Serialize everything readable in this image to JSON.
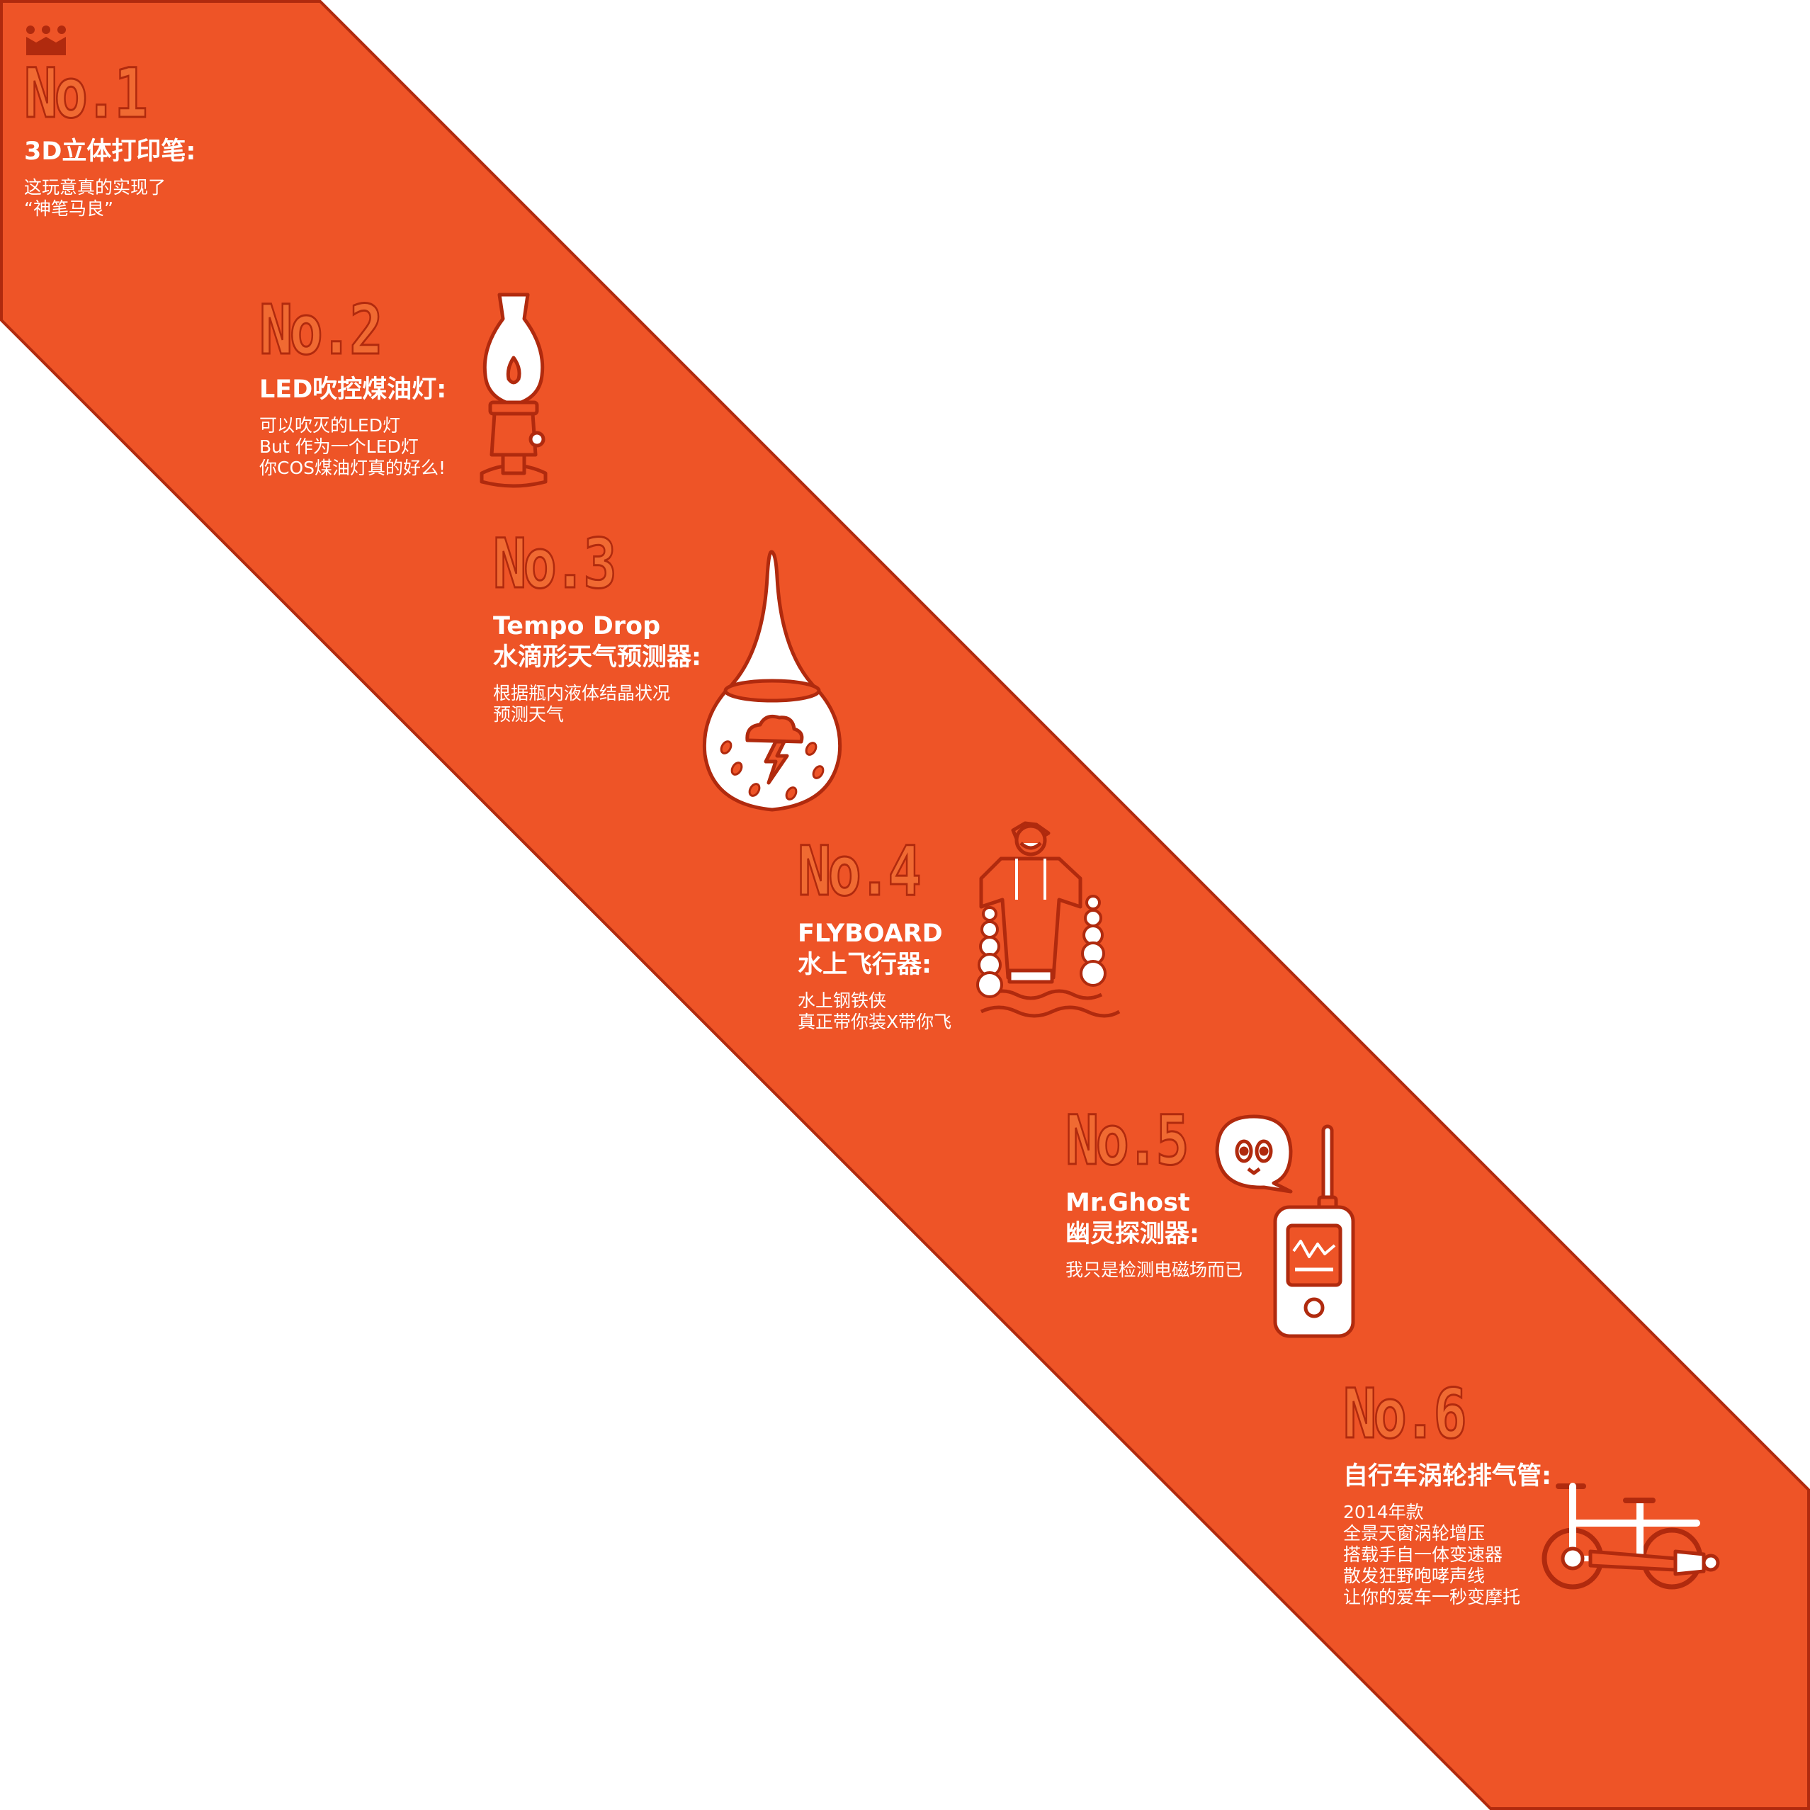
{
  "colors": {
    "band": "#ee5427",
    "band_stroke": "#b02a0e",
    "outline": "#b02a0e",
    "text": "#ffffff",
    "rank_fill": "#f06a32"
  },
  "items": [
    {
      "rank": "No.1",
      "title": "3D立体打印笔:",
      "desc": [
        "这玩意真的实现了",
        "“神笔马良”"
      ],
      "icon": "crown-icon"
    },
    {
      "rank": "No.2",
      "title": "LED吹控煤油灯:",
      "desc": [
        "可以吹灭的LED灯",
        "But 作为一个LED灯",
        "你COS煤油灯真的好么!"
      ],
      "icon": "oil-lamp-icon"
    },
    {
      "rank": "No.3",
      "title_en": "Tempo Drop",
      "title": "水滴形天气预测器:",
      "desc": [
        "根据瓶内液体结晶状况",
        "预测天气"
      ],
      "icon": "water-drop-weather-icon"
    },
    {
      "rank": "No.4",
      "title_en": "FLYBOARD",
      "title": "水上飞行器:",
      "desc": [
        "水上钢铁侠",
        "真正带你装X带你飞"
      ],
      "icon": "flyboard-man-icon"
    },
    {
      "rank": "No.5",
      "title_en": "Mr.Ghost",
      "title": "幽灵探测器:",
      "desc": [
        "我只是检测电磁场而已"
      ],
      "icon": "ghost-detector-icon"
    },
    {
      "rank": "No.6",
      "title": "自行车涡轮排气管:",
      "desc": [
        "2014年款",
        "全景天窗涡轮增压",
        "搭载手自一体变速器",
        "散发狂野咆哮声线",
        "让你的爱车一秒变摩托"
      ],
      "icon": "bicycle-exhaust-icon"
    }
  ]
}
